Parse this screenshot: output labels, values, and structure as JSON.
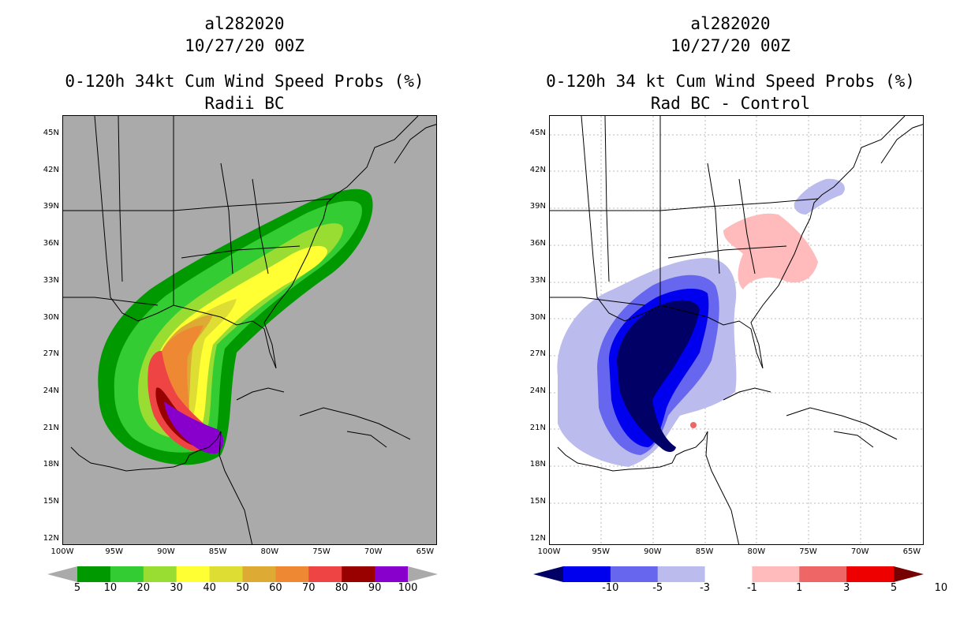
{
  "left": {
    "storm_id": "al282020",
    "date": "10/27/20 00Z",
    "title": "0-120h 34kt Cum Wind Speed Probs (%)",
    "subtitle": "Radii BC",
    "colorbar": {
      "labels": [
        "5",
        "10",
        "20",
        "30",
        "40",
        "50",
        "60",
        "70",
        "80",
        "90",
        "100"
      ],
      "colors": [
        "#009900",
        "#33cc33",
        "#99dd33",
        "#ffff33",
        "#dddd33",
        "#ddaa33",
        "#ee8833",
        "#ee4444",
        "#990000",
        "#8800cc"
      ]
    }
  },
  "right": {
    "storm_id": "al282020",
    "date": "10/27/20 00Z",
    "title": "0-120h 34 kt Cum Wind Speed Probs (%)",
    "subtitle": "Rad BC - Control",
    "colorbar": {
      "labels": [
        "-10",
        "-5",
        "-3",
        "-1",
        "1",
        "3",
        "5",
        "10"
      ],
      "colors": [
        "#000066",
        "#0000ee",
        "#6666ee",
        "#bbbbee",
        "#ffffff",
        "#ffbbbb",
        "#ee6666",
        "#ee0000",
        "#770000"
      ]
    }
  },
  "lat_labels": [
    "45N",
    "42N",
    "39N",
    "36N",
    "33N",
    "30N",
    "27N",
    "24N",
    "21N",
    "18N",
    "15N",
    "12N"
  ],
  "lon_labels": [
    "100W",
    "95W",
    "90W",
    "85W",
    "80W",
    "75W",
    "70W",
    "65W"
  ],
  "colors": {
    "map_bg_left": "#aaaaaa",
    "map_bg_right": "#ffffff",
    "gray_arrow": "#aaaaaa"
  }
}
